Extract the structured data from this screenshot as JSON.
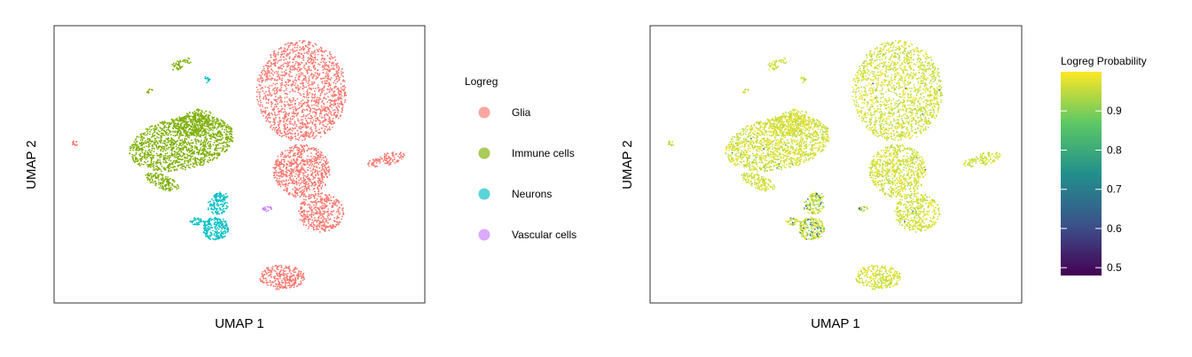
{
  "chart_data": [
    {
      "type": "scatter",
      "xlabel": "UMAP 1",
      "ylabel": "UMAP 2",
      "color_by": "categorical",
      "legend": {
        "title": "Logreg",
        "placement": "right",
        "entries": [
          {
            "label": "Glia",
            "color": "#F8766D"
          },
          {
            "label": "Immune cells",
            "color": "#7CAE00"
          },
          {
            "label": "Neurons",
            "color": "#00BFC4"
          },
          {
            "label": "Vascular cells",
            "color": "#C77CFF"
          }
        ]
      }
    },
    {
      "type": "scatter",
      "xlabel": "UMAP 1",
      "ylabel": "UMAP 2",
      "color_by": "continuous",
      "colorbar": {
        "title": "Logreg Probability",
        "placement": "right",
        "range": [
          0.48,
          1.0
        ],
        "ticks": [
          0.5,
          0.6,
          0.7,
          0.8,
          0.9
        ],
        "tick_labels": [
          "0.5",
          "0.6",
          "0.7",
          "0.8",
          "0.9"
        ],
        "colormap": [
          "#440154",
          "#3B528B",
          "#21908C",
          "#5DC863",
          "#FDE725"
        ]
      }
    }
  ]
}
